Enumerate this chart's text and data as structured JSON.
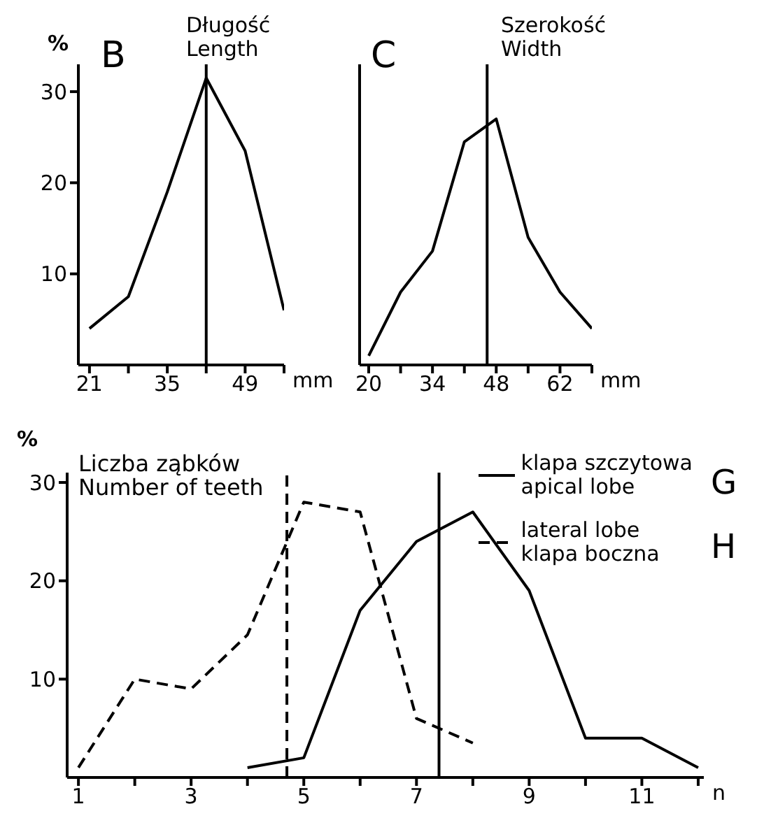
{
  "chart_data": [
    {
      "type": "line",
      "title": "B",
      "annotations": [
        "Długość\nLength"
      ],
      "xlabel": "mm",
      "ylabel": "%",
      "series": [
        {
          "color": "#000000",
          "line_style": "solid",
          "x": [
            21,
            28,
            35,
            42,
            49,
            56
          ],
          "values": [
            4,
            7.5,
            19,
            31.5,
            23.5,
            6
          ]
        }
      ],
      "xlim": [
        19,
        56
      ],
      "xticks": [
        21,
        {
          "value": 28,
          "label": null
        },
        35,
        {
          "value": 42,
          "label": null
        },
        49,
        {
          "value": 56,
          "label": null
        }
      ],
      "ylim": [
        0,
        33
      ],
      "yticks": [
        10,
        20,
        30
      ],
      "marker": "none",
      "grid": false,
      "legend": false,
      "ref_lines": [
        {
          "axis": "x",
          "value": 42,
          "color": "#000000",
          "line_style": "solid"
        }
      ]
    },
    {
      "type": "line",
      "title": "C",
      "annotations": [
        "Szerokość\nWidth"
      ],
      "xlabel": "mm",
      "series": [
        {
          "color": "#000000",
          "line_style": "solid",
          "x": [
            20,
            27,
            34,
            41,
            48,
            55,
            62,
            69
          ],
          "values": [
            1,
            8,
            12.5,
            24.5,
            27,
            14,
            8,
            4
          ]
        }
      ],
      "xlim": [
        18,
        69
      ],
      "xticks": [
        20,
        {
          "value": 27,
          "label": null
        },
        34,
        {
          "value": 41,
          "label": null
        },
        48,
        {
          "value": 55,
          "label": null
        },
        62,
        {
          "value": 69,
          "label": null
        }
      ],
      "ylim": [
        0,
        33
      ],
      "yticks": [
        10,
        20,
        30
      ],
      "tick_labels": "x",
      "marker": "none",
      "grid": false,
      "legend": false,
      "ref_lines": [
        {
          "axis": "x",
          "value": 46,
          "color": "#000000",
          "line_style": "solid"
        }
      ]
    },
    {
      "type": "line",
      "title": "Liczba ząbków\nNumber of teeth",
      "annotations": [
        "G",
        "H"
      ],
      "xlabel": "n",
      "ylabel": "%",
      "series": [
        {
          "name": "klapa szczytowa\napical lobe",
          "color": "#000000",
          "line_style": "solid",
          "x": [
            4,
            5,
            6,
            7,
            8,
            9,
            10,
            11,
            12
          ],
          "values": [
            1,
            2,
            17,
            24,
            27,
            19,
            4,
            4,
            1
          ]
        },
        {
          "name": "lateral lobe\nklapa boczna",
          "color": "#000000",
          "line_style": "dashed",
          "x": [
            1,
            2,
            3,
            4,
            5,
            6,
            7,
            8
          ],
          "values": [
            1,
            10,
            9,
            14.5,
            28,
            27,
            6,
            3.5
          ]
        }
      ],
      "xlim": [
        0.8,
        12.1
      ],
      "xticks": [
        1,
        {
          "value": 2,
          "label": null
        },
        3,
        {
          "value": 4,
          "label": null
        },
        5,
        {
          "value": 6,
          "label": null
        },
        7,
        {
          "value": 8,
          "label": null
        },
        9,
        {
          "value": 10,
          "label": null
        },
        11,
        {
          "value": 12,
          "label": null
        }
      ],
      "ylim": [
        0,
        31
      ],
      "yticks": [
        10,
        20,
        30
      ],
      "marker": "none",
      "grid": false,
      "legend": "top right",
      "ref_lines": [
        {
          "axis": "x",
          "value": 4.7,
          "color": "#000000",
          "line_style": "dashed"
        },
        {
          "axis": "x",
          "value": 7.4,
          "color": "#000000",
          "line_style": "solid"
        }
      ]
    }
  ]
}
